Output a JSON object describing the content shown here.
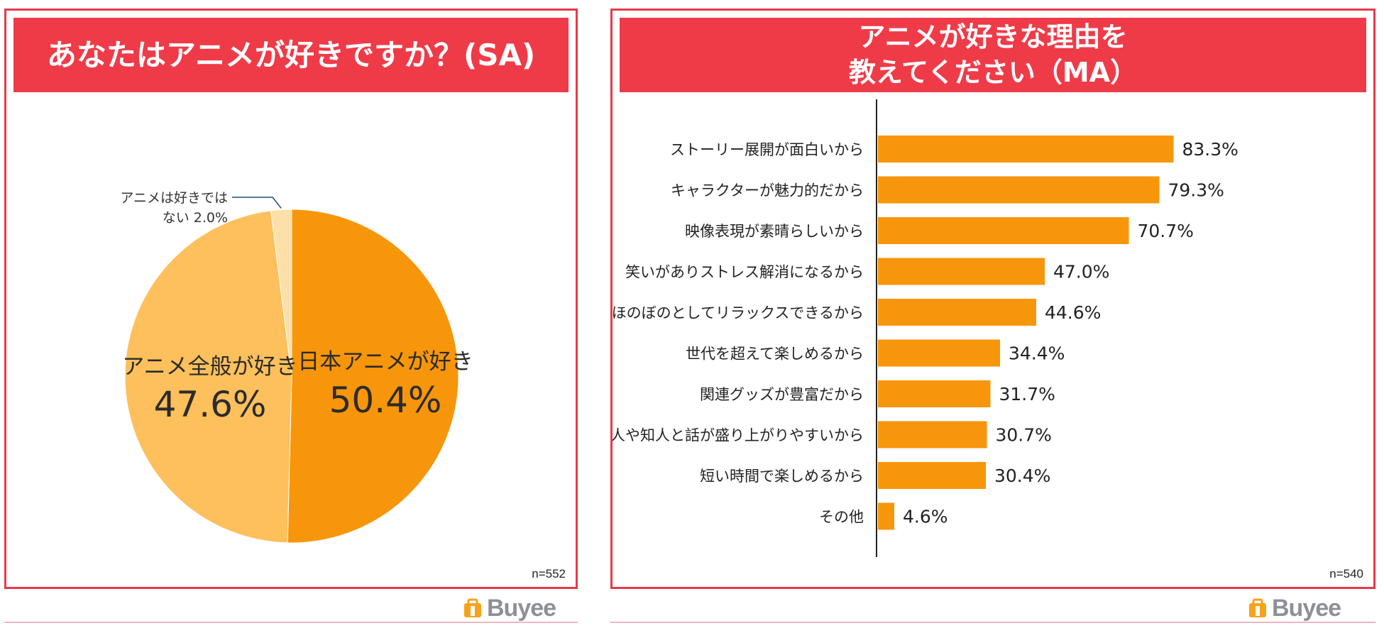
{
  "left_panel": {
    "title": "あなたはアニメが好きですか？(SA)",
    "n_label": "n=552"
  },
  "right_panel": {
    "title_line1": "アニメが好きな理由を",
    "title_line2": "教えてください（MA）",
    "n_label": "n=540"
  },
  "brand": {
    "name": "Buyee"
  },
  "colors": {
    "accent_red": "#ef3b48",
    "orange_dark": "#f7960a",
    "orange_light": "#fdc05c",
    "orange_pale": "#fde0a8",
    "bar_orange": "#f7960a"
  },
  "chart_data": [
    {
      "type": "pie",
      "title": "あなたはアニメが好きですか？(SA)",
      "slices": [
        {
          "label": "日本アニメが好き",
          "value": 50.4,
          "display": "50.4%",
          "color": "#f7960a"
        },
        {
          "label": "アニメ全般が好き",
          "value": 47.6,
          "display": "47.6%",
          "color": "#fdc05c"
        },
        {
          "label_line1": "アニメは好きでは",
          "label_line2": "ない 2.0%",
          "value": 2.0,
          "color": "#fde0a8"
        }
      ],
      "n": "n=552"
    },
    {
      "type": "bar",
      "orientation": "horizontal",
      "title": "アニメが好きな理由を教えてください（MA）",
      "categories": [
        "ストーリー展開が面白いから",
        "キャラクターが魅力的だから",
        "映像表現が素晴らしいから",
        "笑いがありストレス解消になるから",
        "ほのぼのとしてリラックスできるから",
        "世代を超えて楽しめるから",
        "関連グッズが豊富だから",
        "友人や知人と話が盛り上がりやすいから",
        "短い時間で楽しめるから",
        "その他"
      ],
      "values": [
        83.3,
        79.3,
        70.7,
        47.0,
        44.6,
        34.4,
        31.7,
        30.7,
        30.4,
        4.6
      ],
      "value_labels": [
        "83.3%",
        "79.3%",
        "70.7%",
        "47.0%",
        "44.6%",
        "34.4%",
        "31.7%",
        "30.7%",
        "30.4%",
        "4.6%"
      ],
      "xlim": [
        0,
        100
      ],
      "grid": false,
      "n": "n=540"
    }
  ]
}
